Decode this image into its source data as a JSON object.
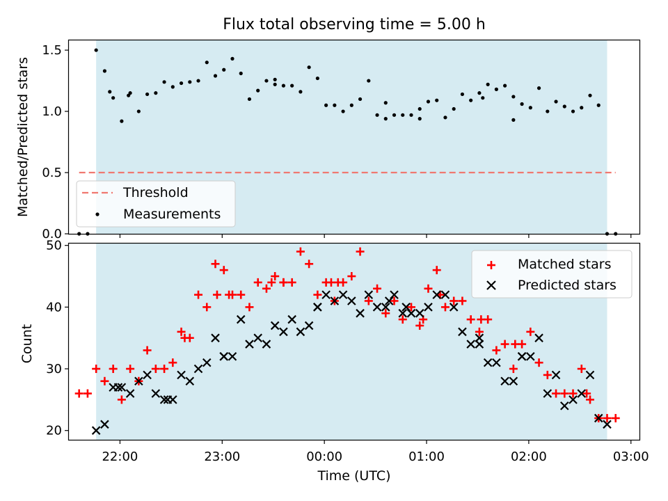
{
  "title": "Flux total observing time = 5.00 h",
  "chart_data": [
    {
      "type": "scatter",
      "panel": "top",
      "ylabel": "Matched/Predicted stars",
      "ylim": [
        0,
        1.58
      ],
      "xlim": [
        "21:30",
        "03:05"
      ],
      "yticks": [
        0.0,
        0.5,
        1.0,
        1.5
      ],
      "shaded_interval": [
        "21:46",
        "02:46"
      ],
      "threshold": {
        "name": "Threshold",
        "value": 0.5,
        "x_range": [
          "21:36",
          "02:51"
        ],
        "color": "#f07870",
        "style": "dashed"
      },
      "legend": {
        "placement": "lower-left",
        "entries": [
          "Threshold",
          "Measurements"
        ]
      },
      "series": [
        {
          "name": "Measurements",
          "marker": "dot",
          "color": "#000000",
          "x": [
            "21:36",
            "21:41",
            "21:46",
            "21:51",
            "21:56",
            "22:01",
            "22:06",
            "22:11",
            "22:16",
            "22:21",
            "22:31",
            "22:36",
            "22:41",
            "22:46",
            "22:51",
            "22:56",
            "23:01",
            "23:06",
            "23:11",
            "23:16",
            "23:21",
            "23:26",
            "23:31",
            "23:36",
            "23:41",
            "23:46",
            "23:51",
            "23:56",
            "00:01",
            "00:06",
            "00:11",
            "00:16",
            "00:21",
            "00:26",
            "00:31",
            "00:36",
            "00:41",
            "00:46",
            "00:51",
            "00:56",
            "01:01",
            "01:06",
            "01:11",
            "01:16",
            "01:21",
            "01:26",
            "01:31",
            "01:36",
            "01:41",
            "01:46",
            "01:51",
            "01:56",
            "02:01",
            "02:06",
            "02:11",
            "02:16",
            "02:21",
            "02:26",
            "02:31",
            "02:36",
            "02:41",
            "02:46",
            "02:51",
            "21:54",
            "22:05",
            "22:26",
            "23:31",
            "00:36",
            "00:56",
            "01:33",
            "01:51"
          ],
          "y": [
            0.0,
            0.0,
            1.5,
            1.33,
            1.11,
            0.92,
            1.15,
            1.0,
            1.14,
            1.15,
            1.2,
            1.23,
            1.24,
            1.25,
            1.4,
            1.29,
            1.34,
            1.43,
            1.31,
            1.1,
            1.17,
            1.25,
            1.26,
            1.21,
            1.21,
            1.16,
            1.36,
            1.27,
            1.05,
            1.05,
            1.0,
            1.05,
            1.1,
            1.25,
            0.97,
            1.07,
            0.97,
            0.97,
            0.97,
            1.02,
            1.08,
            1.09,
            0.95,
            1.02,
            1.14,
            1.09,
            1.15,
            1.22,
            1.18,
            1.21,
            0.93,
            1.06,
            1.03,
            1.19,
            1.0,
            1.08,
            1.04,
            1.0,
            1.03,
            1.13,
            1.05,
            0.0,
            0.0,
            1.16,
            1.13,
            1.24,
            1.22,
            0.94,
            0.94,
            1.11,
            1.12
          ]
        }
      ]
    },
    {
      "type": "scatter",
      "panel": "bottom",
      "xlabel": "Time (UTC)",
      "ylabel": "Count",
      "ylim": [
        18.5,
        50.3
      ],
      "xlim": [
        "21:30",
        "03:05"
      ],
      "yticks": [
        20,
        30,
        40,
        50
      ],
      "xticks": [
        "22:00",
        "23:00",
        "00:00",
        "01:00",
        "02:00",
        "03:00"
      ],
      "shaded_interval": [
        "21:46",
        "02:46"
      ],
      "legend": {
        "placement": "top-right",
        "entries": [
          "Matched stars",
          "Predicted stars"
        ]
      },
      "series": [
        {
          "name": "Matched stars",
          "marker": "plus",
          "color": "#ff0000",
          "x": [
            "21:36",
            "21:41",
            "21:46",
            "21:51",
            "21:56",
            "22:01",
            "22:06",
            "22:11",
            "22:16",
            "22:21",
            "22:26",
            "22:31",
            "22:36",
            "22:41",
            "22:46",
            "22:51",
            "22:56",
            "23:01",
            "23:06",
            "23:11",
            "23:16",
            "23:21",
            "23:26",
            "23:31",
            "23:36",
            "23:41",
            "23:46",
            "23:51",
            "23:56",
            "00:01",
            "00:06",
            "00:11",
            "00:16",
            "00:21",
            "00:26",
            "00:31",
            "00:36",
            "00:41",
            "00:46",
            "00:51",
            "00:56",
            "01:01",
            "01:06",
            "01:11",
            "01:16",
            "01:21",
            "01:26",
            "01:31",
            "01:36",
            "01:41",
            "01:46",
            "01:51",
            "01:56",
            "02:01",
            "02:06",
            "02:11",
            "02:16",
            "02:21",
            "02:26",
            "02:31",
            "02:36",
            "02:41",
            "02:46",
            "02:51",
            "22:38",
            "22:57",
            "23:04",
            "23:29",
            "23:36",
            "00:04",
            "00:08",
            "00:58",
            "01:08",
            "01:32",
            "01:52",
            "02:34"
          ],
          "y": [
            26,
            26,
            30,
            28,
            30,
            25,
            30,
            28,
            33,
            30,
            30,
            31,
            36,
            35,
            42,
            40,
            47,
            46,
            42,
            42,
            40,
            44,
            43,
            45,
            44,
            44,
            49,
            47,
            42,
            44,
            41,
            44,
            45,
            49,
            41,
            43,
            39,
            41,
            38,
            40,
            37,
            43,
            46,
            40,
            41,
            41,
            38,
            36,
            38,
            33,
            34,
            30,
            34,
            36,
            31,
            29,
            26,
            26,
            26,
            30,
            25,
            22,
            22,
            22,
            35,
            42,
            42,
            44,
            44,
            44,
            44,
            38,
            42,
            38,
            34,
            26
          ]
        },
        {
          "name": "Predicted stars",
          "marker": "x",
          "color": "#000000",
          "x": [
            "21:46",
            "21:51",
            "21:56",
            "22:01",
            "22:06",
            "22:11",
            "22:16",
            "22:21",
            "22:26",
            "22:31",
            "22:36",
            "22:41",
            "22:46",
            "22:51",
            "22:56",
            "23:01",
            "23:06",
            "23:11",
            "23:16",
            "23:21",
            "23:26",
            "23:31",
            "23:36",
            "23:41",
            "23:46",
            "23:51",
            "23:56",
            "00:01",
            "00:06",
            "00:11",
            "00:16",
            "00:21",
            "00:26",
            "00:31",
            "00:36",
            "00:41",
            "00:46",
            "00:51",
            "00:56",
            "01:01",
            "01:06",
            "01:11",
            "01:16",
            "01:21",
            "01:26",
            "01:31",
            "01:36",
            "01:41",
            "01:46",
            "01:51",
            "01:56",
            "02:01",
            "02:06",
            "02:11",
            "02:16",
            "02:21",
            "02:26",
            "02:31",
            "02:36",
            "02:41",
            "02:46",
            "21:59",
            "22:28",
            "23:01",
            "23:56",
            "00:38",
            "00:48",
            "01:31",
            "01:56"
          ],
          "y": [
            20,
            21,
            27,
            27,
            26,
            28,
            29,
            26,
            25,
            25,
            29,
            28,
            30,
            31,
            35,
            32,
            32,
            38,
            34,
            35,
            34,
            37,
            36,
            38,
            36,
            37,
            40,
            42,
            41,
            42,
            41,
            39,
            42,
            40,
            40,
            42,
            39,
            39,
            39,
            40,
            42,
            42,
            40,
            36,
            34,
            35,
            31,
            31,
            28,
            28,
            32,
            32,
            35,
            26,
            29,
            24,
            25,
            26,
            29,
            22,
            21,
            27,
            25,
            32,
            40,
            41,
            40,
            34,
            32
          ]
        }
      ]
    }
  ]
}
